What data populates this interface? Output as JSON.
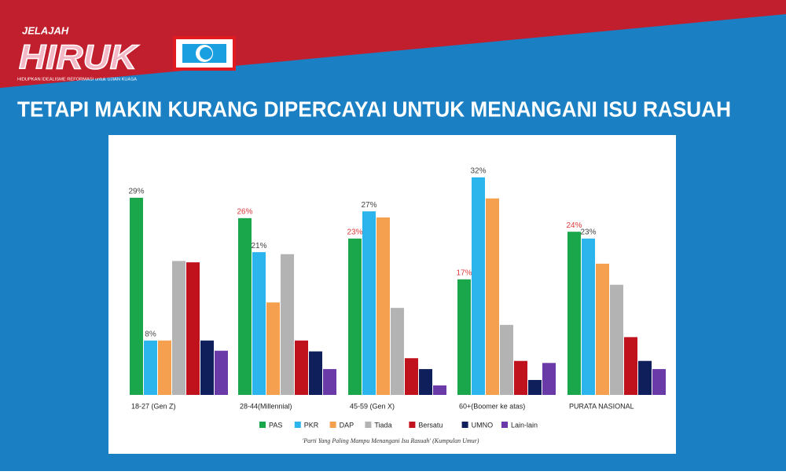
{
  "header": {
    "brand_top": "JELAJAH",
    "brand_main": "HIRUK",
    "brand_sub": "HIDUPKAN IDEALISME REFORMASI untuk UJIAN KUASA",
    "headline": "TETAPI MAKIN KURANG DIPERCAYAI UNTUK MENANGANI ISU RASUAH"
  },
  "chart_data": {
    "type": "bar",
    "categories": [
      "18-27 (Gen Z)",
      "28-44(Millennial)",
      "45-59 (Gen X)",
      "60+(Boomer ke atas)",
      "PURATA NASIONAL"
    ],
    "series": [
      {
        "name": "PAS",
        "color": "#1aa64a",
        "values": [
          29,
          26,
          23,
          17,
          24
        ],
        "value_labels": [
          "29%",
          "26%",
          "23%",
          "17%",
          "24%"
        ]
      },
      {
        "name": "PKR",
        "color": "#2bb5ec",
        "values": [
          8,
          21,
          27,
          32,
          23
        ],
        "value_labels": [
          "8%",
          "21%",
          "27%",
          "32%",
          "23%"
        ]
      },
      {
        "name": "DAP",
        "color": "#f5a04e",
        "values": [
          8,
          13.6,
          26.1,
          28.9,
          19.3
        ]
      },
      {
        "name": "Tiada",
        "color": "#b3b3b3",
        "values": [
          19.7,
          20.7,
          12.8,
          10.3,
          16.2
        ]
      },
      {
        "name": "Bersatu",
        "color": "#c0121c",
        "values": [
          19.5,
          8,
          5.4,
          5,
          8.5
        ]
      },
      {
        "name": "UMNO",
        "color": "#0f1f5c",
        "values": [
          8,
          6.4,
          3.8,
          2.2,
          5
        ]
      },
      {
        "name": "Lain-lain",
        "color": "#6a3aa8",
        "values": [
          6.5,
          3.8,
          1.4,
          4.7,
          3.8
        ]
      }
    ],
    "caption": "'Parti Yang Paling Mampu Menangani Isu Rasuah' (Kumpulan Umur)",
    "legend": "bottom"
  }
}
